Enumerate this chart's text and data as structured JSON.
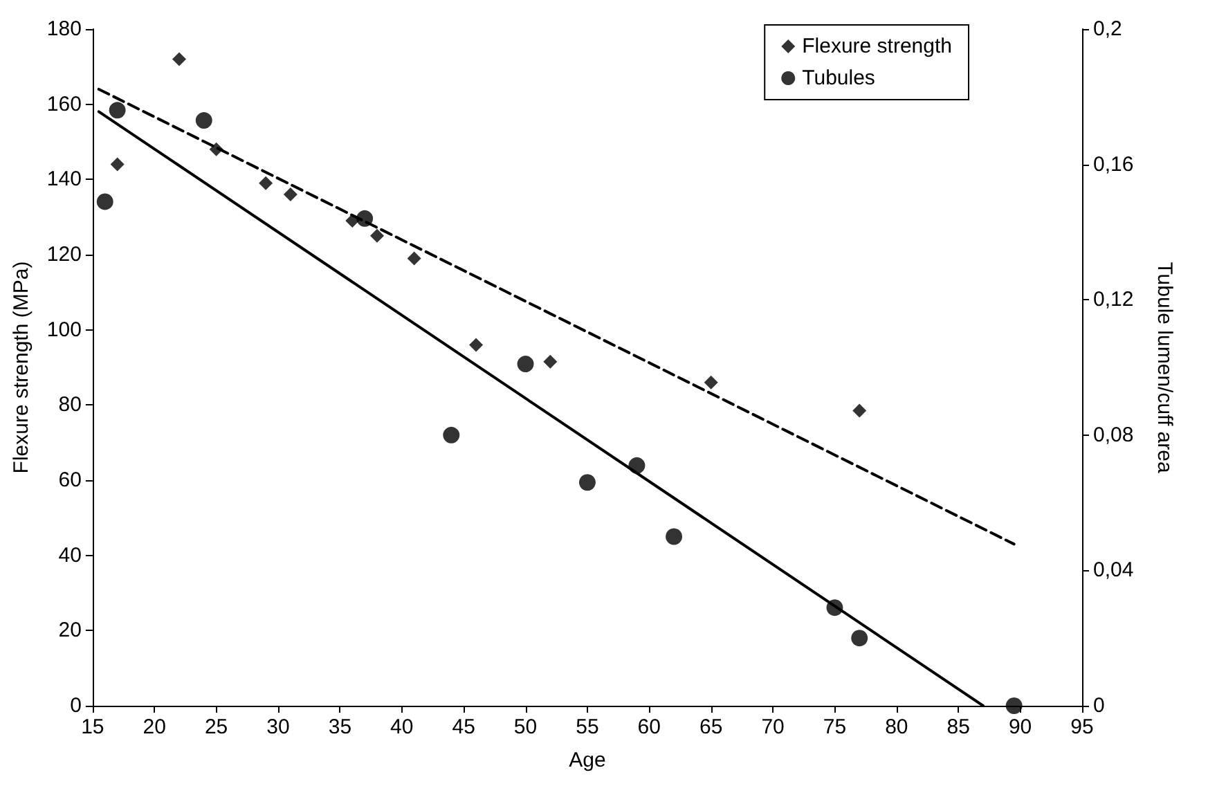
{
  "chart_data": {
    "type": "scatter",
    "xlabel": "Age",
    "ylabel": "Flexure strength (MPa)",
    "y2label": "Tubule lumen/cuff area",
    "xlim": [
      15,
      95
    ],
    "xticks": [
      15,
      20,
      25,
      30,
      35,
      40,
      45,
      50,
      55,
      60,
      65,
      70,
      75,
      80,
      85,
      90,
      95
    ],
    "ylim": [
      0,
      180
    ],
    "yticks": [
      0,
      20,
      40,
      60,
      80,
      100,
      120,
      140,
      160,
      180
    ],
    "y2lim": [
      0,
      0.2
    ],
    "y2ticks": [
      {
        "value": 0,
        "label": "0"
      },
      {
        "value": 0.04,
        "label": "0,04"
      },
      {
        "value": 0.08,
        "label": "0,08"
      },
      {
        "value": 0.12,
        "label": "0,12"
      },
      {
        "value": 0.16,
        "label": "0,16"
      },
      {
        "value": 0.2,
        "label": "0,2"
      }
    ],
    "grid": false,
    "legend": "top right",
    "series": [
      {
        "name": "Flexure strength",
        "marker": "diamond",
        "color": "#000000",
        "x": [
          17,
          22,
          25,
          29,
          31,
          36,
          38,
          41,
          46,
          52,
          65,
          77
        ],
        "values": [
          144,
          172,
          148,
          139,
          136,
          129,
          125,
          119,
          96,
          91.5,
          86,
          78.5
        ]
      },
      {
        "name": "Tubules",
        "marker": "circle",
        "color": "#000000",
        "axis": "y2",
        "x": [
          16,
          17,
          24,
          37,
          44,
          50,
          55,
          59,
          62,
          75,
          77,
          89.5
        ],
        "values": [
          0.149,
          0.176,
          0.173,
          0.144,
          0.08,
          0.101,
          0.066,
          0.071,
          0.05,
          0.029,
          0.02,
          0
        ]
      },
      {
        "type": "line",
        "marker": "none",
        "line_style": "dashed",
        "color": "#000000",
        "x": [
          15.5,
          89.5
        ],
        "values": [
          164,
          43
        ]
      },
      {
        "type": "line",
        "marker": "none",
        "line_style": "solid",
        "color": "#000000",
        "axis": "y2",
        "x": [
          15.5,
          87
        ],
        "values": [
          0.1756,
          0
        ]
      }
    ]
  }
}
